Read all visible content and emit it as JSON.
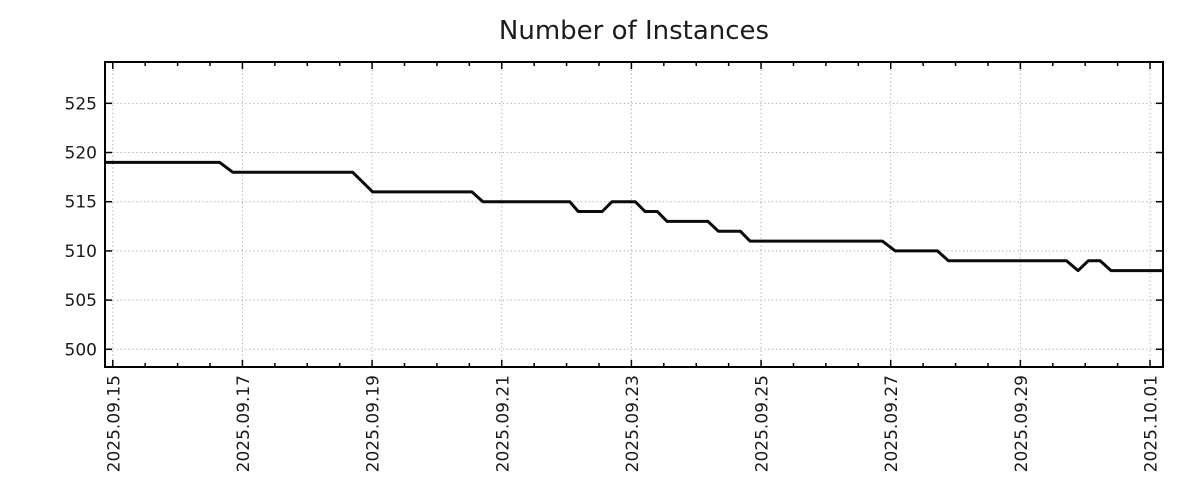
{
  "chart_data": {
    "type": "line",
    "title": "Number of Instances",
    "x_axis": {
      "unit": "days since 2025.09.15",
      "range": [
        -0.12,
        16.2
      ],
      "major_ticks": [
        {
          "day": 0,
          "label": "2025.09.15"
        },
        {
          "day": 2,
          "label": "2025.09.17"
        },
        {
          "day": 4,
          "label": "2025.09.19"
        },
        {
          "day": 6,
          "label": "2025.09.21"
        },
        {
          "day": 8,
          "label": "2025.09.23"
        },
        {
          "day": 10,
          "label": "2025.09.25"
        },
        {
          "day": 12,
          "label": "2025.09.27"
        },
        {
          "day": 14,
          "label": "2025.09.29"
        },
        {
          "day": 16,
          "label": "2025.10.01"
        }
      ],
      "minor_tick_interval": 0.5
    },
    "y_axis": {
      "range": [
        498.2,
        529.2
      ],
      "major_ticks": [
        500,
        505,
        510,
        515,
        520,
        525
      ]
    },
    "grid": {
      "show": true,
      "style": "dotted",
      "color": "#aeaeae"
    },
    "series": [
      {
        "name": "instances",
        "color": "#0a0a0a",
        "line_width": 3,
        "points_day_value": [
          [
            -0.12,
            519
          ],
          [
            1.65,
            519
          ],
          [
            1.85,
            518
          ],
          [
            3.7,
            518
          ],
          [
            4.01,
            516
          ],
          [
            5.54,
            516
          ],
          [
            5.71,
            515
          ],
          [
            7.05,
            515
          ],
          [
            7.18,
            514
          ],
          [
            7.55,
            514
          ],
          [
            7.7,
            515
          ],
          [
            8.06,
            515
          ],
          [
            8.21,
            514
          ],
          [
            8.4,
            514
          ],
          [
            8.55,
            513
          ],
          [
            9.18,
            513
          ],
          [
            9.34,
            512
          ],
          [
            9.68,
            512
          ],
          [
            9.83,
            511
          ],
          [
            11.87,
            511
          ],
          [
            12.07,
            510
          ],
          [
            12.72,
            510
          ],
          [
            12.89,
            509
          ],
          [
            14.71,
            509
          ],
          [
            14.89,
            508
          ],
          [
            15.05,
            509
          ],
          [
            15.23,
            509
          ],
          [
            15.4,
            508
          ],
          [
            16.2,
            508
          ]
        ]
      }
    ]
  }
}
